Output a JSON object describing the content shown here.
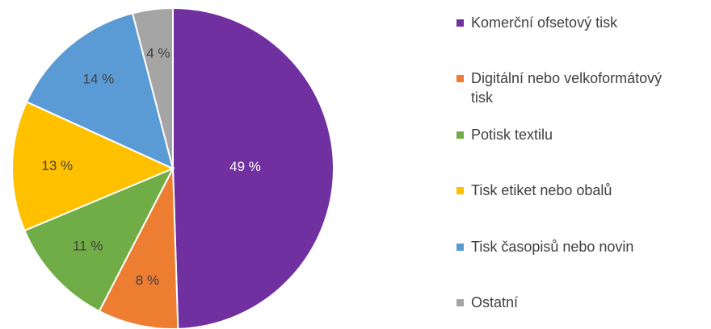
{
  "chart_data": {
    "type": "pie",
    "categories": [
      "Komerční ofsetový tisk",
      "Digitální nebo velkoformátový tisk",
      "Potisk textilu",
      "Tisk etiket nebo obalů",
      "Tisk časopisů nebo novin",
      "Ostatní"
    ],
    "values": [
      49,
      8,
      11,
      13,
      14,
      4
    ],
    "value_labels": [
      "49 %",
      "8 %",
      "11 %",
      "13 %",
      "14 %",
      "4 %"
    ],
    "colors": [
      "#7030a0",
      "#ed7d31",
      "#70ad47",
      "#ffc000",
      "#5b9bd5",
      "#a5a5a5"
    ],
    "legend": "right"
  }
}
